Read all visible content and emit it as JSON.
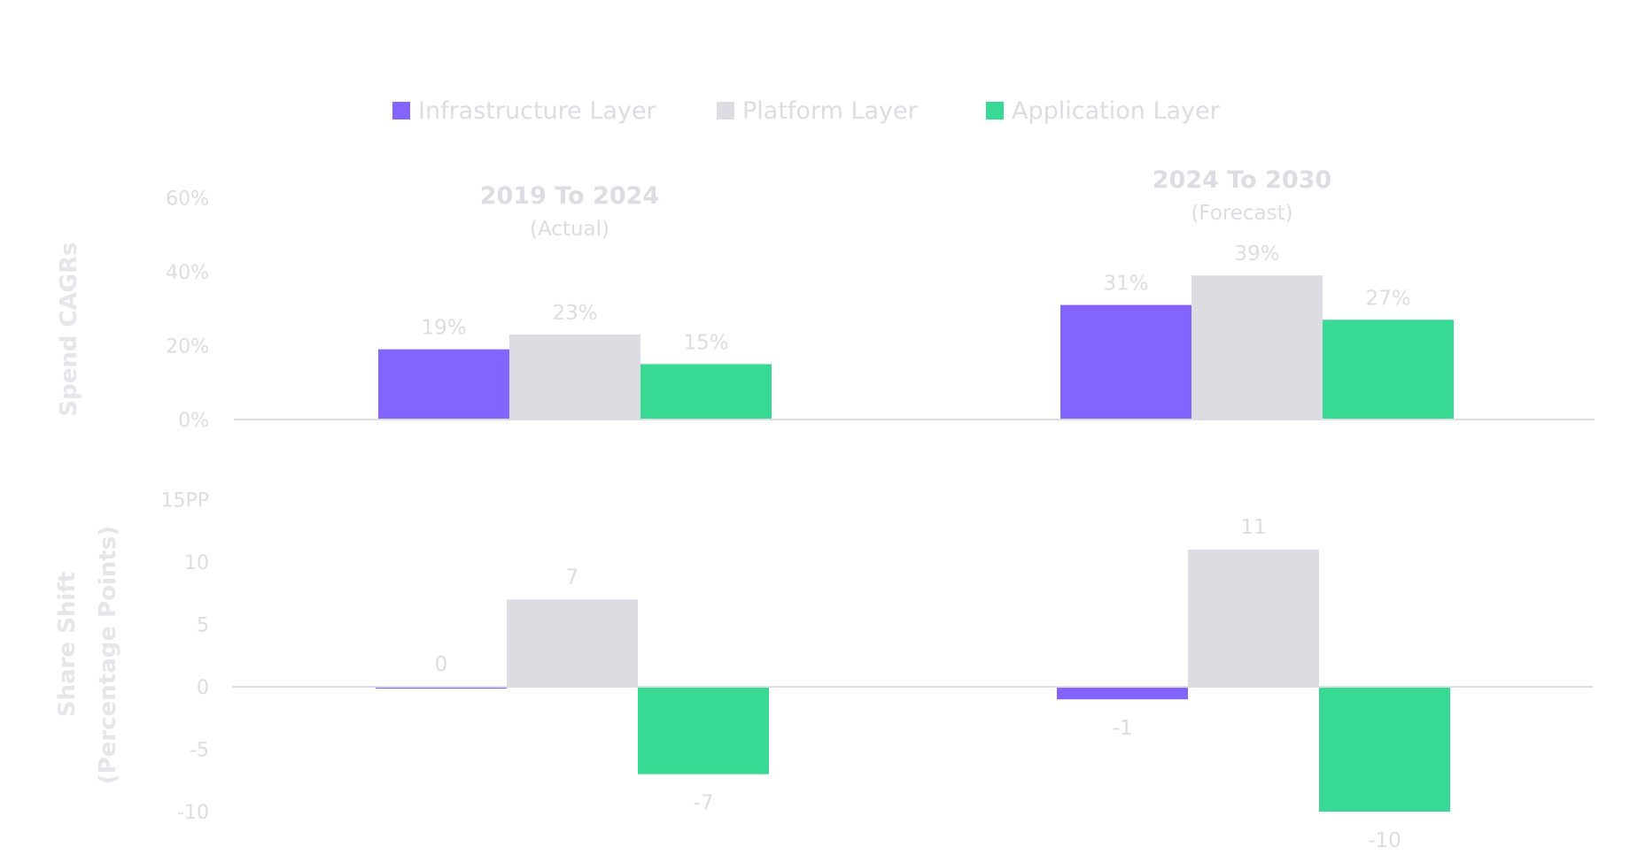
{
  "chart_data": [
    {
      "type": "bar",
      "ylabel": "Spend CAGRs",
      "yticks": [
        "0%",
        "20%",
        "40%",
        "60%"
      ],
      "ylim": [
        0,
        60
      ],
      "groups": [
        {
          "title": "2019 To 2024",
          "subtitle": "(Actual)"
        },
        {
          "title": "2024 To 2030",
          "subtitle": "(Forecast)"
        }
      ],
      "series": [
        {
          "name": "Infrastructure Layer",
          "color": "#8364ff",
          "values": [
            19,
            31
          ],
          "labels": [
            "19%",
            "31%"
          ]
        },
        {
          "name": "Platform Layer",
          "color": "#dcdce2",
          "values": [
            23,
            39
          ],
          "labels": [
            "23%",
            "39%"
          ]
        },
        {
          "name": "Application Layer",
          "color": "#38da93",
          "values": [
            15,
            27
          ],
          "labels": [
            "15%",
            "27%"
          ]
        }
      ]
    },
    {
      "type": "bar",
      "ylabel_line1": "Share Shift",
      "ylabel_line2": "(Percentage Points)",
      "yticks": [
        "-10",
        "-5",
        "0",
        "5",
        "10",
        "15PP"
      ],
      "ylim": [
        -10,
        15
      ],
      "series": [
        {
          "name": "Infrastructure Layer",
          "color": "#8364ff",
          "values": [
            0,
            -1
          ],
          "labels": [
            "0",
            "-1"
          ]
        },
        {
          "name": "Platform Layer",
          "color": "#dcdce2",
          "values": [
            7,
            11
          ],
          "labels": [
            "7",
            "11"
          ]
        },
        {
          "name": "Application Layer",
          "color": "#38da93",
          "values": [
            -7,
            -10
          ],
          "labels": [
            "-7",
            "-10"
          ]
        }
      ]
    }
  ],
  "legend": [
    {
      "label": "Infrastructure Layer",
      "color": "#8364ff"
    },
    {
      "label": "Platform Layer",
      "color": "#dcdce2"
    },
    {
      "label": "Application Layer",
      "color": "#38da93"
    }
  ]
}
